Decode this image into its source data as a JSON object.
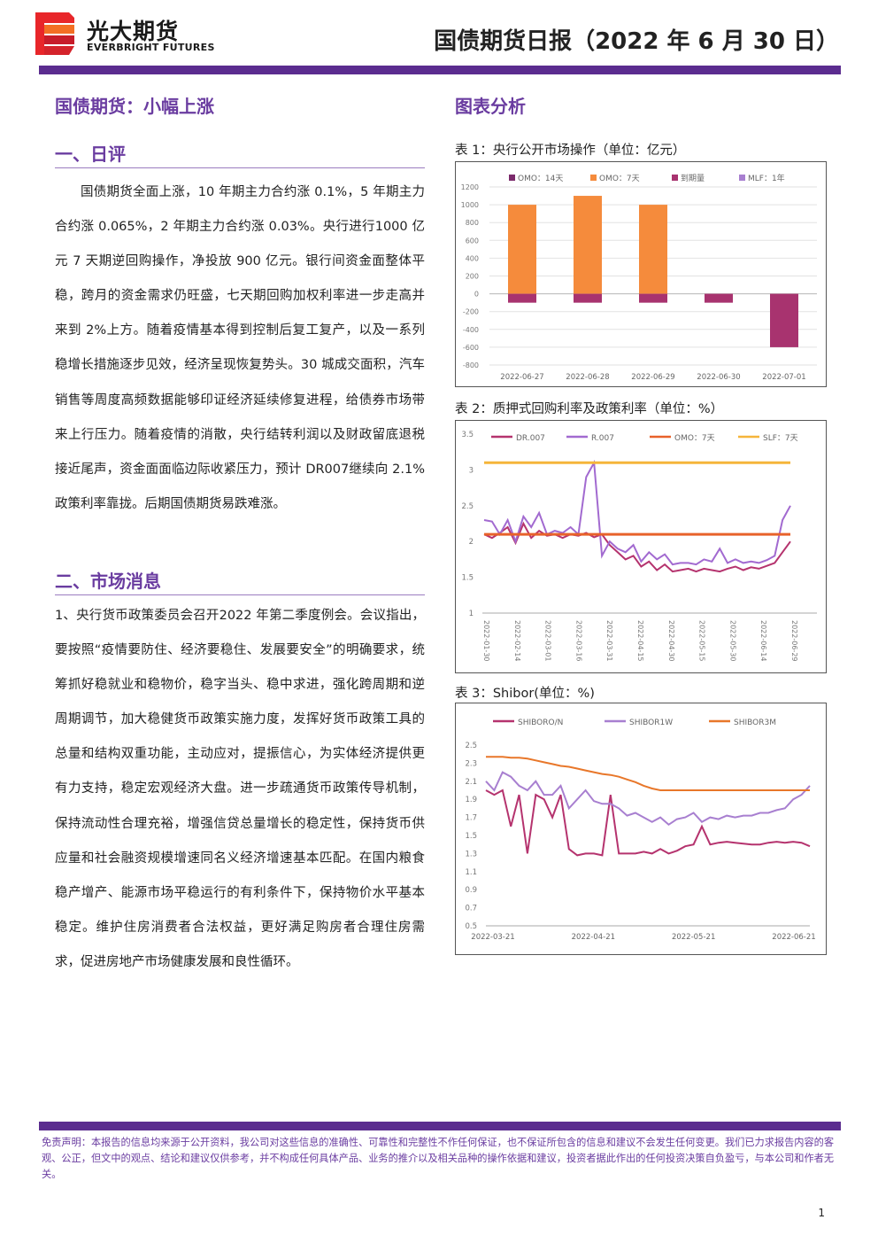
{
  "header": {
    "brand_cn": "光大期货",
    "brand_en": "EVERBRIGHT FUTURES",
    "report_title": "国债期货日报（2022 年 6 月 30 日）",
    "logo_colors": [
      "#e8262a",
      "#c71c2a",
      "#f36f24",
      "#d4232b"
    ]
  },
  "left": {
    "main_heading": "国债期货：小幅上涨",
    "section1_heading": "一、日评",
    "section1_text": "国债期货全面上涨，10 年期主力合约涨 0.1%，5 年期主力合约涨 0.065%，2 年期主力合约涨 0.03%。央行进行1000 亿元 7 天期逆回购操作，净投放 900 亿元。银行间资金面整体平稳，跨月的资金需求仍旺盛，七天期回购加权利率进一步走高并来到 2%上方。随着疫情基本得到控制后复工复产，以及一系列稳增长措施逐步见效，经济呈现恢复势头。30 城成交面积，汽车销售等周度高频数据能够印证经济延续修复进程，给债券市场带来上行压力。随着疫情的消散，央行结转利润以及财政留底退税接近尾声，资金面面临边际收紧压力，预计 DR007继续向 2.1%政策利率靠拢。后期国债期货易跌难涨。",
    "section2_heading": "二、市场消息",
    "section2_text": "1、央行货币政策委员会召开2022 年第二季度例会。会议指出，要按照“疫情要防住、经济要稳住、发展要安全”的明确要求，统筹抓好稳就业和稳物价，稳字当头、稳中求进，强化跨周期和逆周期调节，加大稳健货币政策实施力度，发挥好货币政策工具的总量和结构双重功能，主动应对，提振信心，为实体经济提供更有力支持，稳定宏观经济大盘。进一步疏通货币政策传导机制，保持流动性合理充裕，增强信贷总量增长的稳定性，保持货币供应量和社会融资规模增速同名义经济增速基本匹配。在国内粮食稳产增产、能源市场平稳运行的有利条件下，保持物价水平基本稳定。维护住房消费者合法权益，更好满足购房者合理住房需求，促进房地产市场健康发展和良性循环。"
  },
  "right": {
    "heading": "图表分析",
    "chart1_caption": "表 1：央行公开市场操作（单位：亿元）",
    "chart2_caption": "表 2：质押式回购利率及政策利率（单位：%）",
    "chart3_caption": "表 3：Shibor(单位：%)"
  },
  "chart_data": [
    {
      "type": "bar",
      "categories": [
        "2022-06-27",
        "2022-06-28",
        "2022-06-29",
        "2022-06-30",
        "2022-07-01"
      ],
      "series": [
        {
          "name": "OMO：14天",
          "color": "#7b2a6b",
          "values": [
            0,
            0,
            0,
            0,
            0
          ]
        },
        {
          "name": "OMO：7天",
          "color": "#f58b3c",
          "values": [
            1000,
            1100,
            1000,
            0,
            0
          ]
        },
        {
          "name": "到期量",
          "color": "#a8336f",
          "values": [
            -100,
            -100,
            -100,
            -100,
            -600
          ]
        },
        {
          "name": "MLF：1年",
          "color": "#a87fd0",
          "values": [
            0,
            0,
            0,
            0,
            0
          ]
        }
      ],
      "yticks": [
        "1200",
        "1000",
        "800",
        "600",
        "400",
        "200",
        "0",
        "-200",
        "-400",
        "-600",
        "-800"
      ],
      "ylim": [
        -800,
        1200
      ]
    },
    {
      "type": "line",
      "x_ticks": [
        "2022-01-30",
        "2022-02-14",
        "2022-03-01",
        "2022-03-16",
        "2022-03-31",
        "2022-04-15",
        "2022-04-30",
        "2022-05-15",
        "2022-05-30",
        "2022-06-14",
        "2022-06-29"
      ],
      "series": [
        {
          "name": "DR.007",
          "color": "#b5336e",
          "values": [
            2.1,
            2.05,
            2.12,
            2.2,
            1.98,
            2.25,
            2.05,
            2.15,
            2.08,
            2.1,
            2.05,
            2.1,
            2.08,
            2.12,
            2.06,
            2.1,
            1.95,
            1.85,
            1.75,
            1.8,
            1.65,
            1.72,
            1.6,
            1.68,
            1.58,
            1.6,
            1.62,
            1.58,
            1.62,
            1.6,
            1.58,
            1.62,
            1.65,
            1.6,
            1.64,
            1.62,
            1.66,
            1.7,
            1.85,
            2.0
          ]
        },
        {
          "name": "R.007",
          "color": "#a26ad0",
          "values": [
            2.3,
            2.28,
            2.1,
            2.3,
            2.0,
            2.35,
            2.2,
            2.4,
            2.1,
            2.15,
            2.12,
            2.2,
            2.1,
            2.9,
            3.1,
            1.8,
            2.0,
            1.9,
            1.85,
            1.95,
            1.72,
            1.85,
            1.75,
            1.82,
            1.68,
            1.7,
            1.7,
            1.68,
            1.75,
            1.72,
            1.9,
            1.7,
            1.75,
            1.7,
            1.72,
            1.7,
            1.74,
            1.8,
            2.3,
            2.5
          ]
        },
        {
          "name": "OMO：7天",
          "color": "#e8622a",
          "values": [
            2.1,
            2.1
          ]
        },
        {
          "name": "SLF：7天",
          "color": "#f5b53a",
          "values": [
            3.1,
            3.1
          ]
        }
      ],
      "yticks": [
        "3.5",
        "3",
        "2.5",
        "2",
        "1.5",
        "1"
      ],
      "ylim": [
        1,
        3.5
      ]
    },
    {
      "type": "line",
      "x_ticks": [
        "2022-03-21",
        "2022-04-21",
        "2022-05-21",
        "2022-06-21"
      ],
      "series": [
        {
          "name": "SHIBORO/N",
          "color": "#b5336e",
          "values": [
            2.0,
            1.95,
            2.0,
            1.6,
            1.95,
            1.3,
            1.95,
            1.9,
            1.7,
            1.95,
            1.35,
            1.28,
            1.3,
            1.3,
            1.28,
            1.95,
            1.3,
            1.3,
            1.3,
            1.32,
            1.3,
            1.35,
            1.3,
            1.33,
            1.38,
            1.4,
            1.6,
            1.4,
            1.42,
            1.43,
            1.42,
            1.41,
            1.4,
            1.4,
            1.42,
            1.43,
            1.42,
            1.43,
            1.42,
            1.38
          ]
        },
        {
          "name": "SHIBOR1W",
          "color": "#a87fd0",
          "values": [
            2.1,
            2.0,
            2.2,
            2.15,
            2.05,
            2.0,
            2.1,
            1.95,
            1.95,
            2.05,
            1.8,
            1.9,
            2.0,
            1.88,
            1.85,
            1.85,
            1.8,
            1.72,
            1.75,
            1.7,
            1.65,
            1.7,
            1.62,
            1.68,
            1.7,
            1.75,
            1.65,
            1.7,
            1.68,
            1.72,
            1.7,
            1.72,
            1.72,
            1.75,
            1.75,
            1.78,
            1.8,
            1.9,
            1.95,
            2.05
          ]
        },
        {
          "name": "SHIBOR3M",
          "color": "#e8772a",
          "values": [
            2.37,
            2.37,
            2.37,
            2.36,
            2.36,
            2.35,
            2.33,
            2.31,
            2.29,
            2.27,
            2.26,
            2.24,
            2.22,
            2.2,
            2.18,
            2.17,
            2.15,
            2.12,
            2.09,
            2.05,
            2.02,
            2.0,
            2.0,
            2.0,
            2.0,
            2.0,
            2.0,
            2.0,
            2.0,
            2.0,
            2.0,
            2.0,
            2.0,
            2.0,
            2.0,
            2.0,
            2.0,
            2.0,
            2.0,
            2.0
          ]
        }
      ],
      "yticks": [
        "2.5",
        "2.3",
        "2.1",
        "1.9",
        "1.7",
        "1.5",
        "1.3",
        "1.1",
        "0.9",
        "0.7",
        "0.5"
      ],
      "ylim": [
        0.5,
        2.5
      ]
    }
  ],
  "footer": {
    "disclaimer": "免责声明：本报告的信息均来源于公开资料，我公司对这些信息的准确性、可靠性和完整性不作任何保证，也不保证所包含的信息和建议不会发生任何变更。我们已力求报告内容的客观、公正，但文中的观点、结论和建议仅供参考，并不构成任何具体产品、业务的推介以及相关品种的操作依据和建议，投资者据此作出的任何投资决策自负盈亏，与本公司和作者无关。",
    "page_number": "1"
  }
}
